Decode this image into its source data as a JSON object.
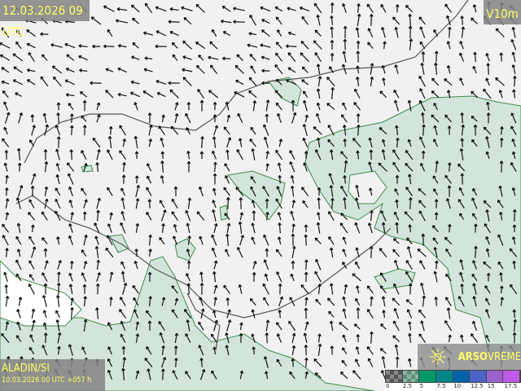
{
  "header": {
    "valid_time": "12.03.2026 09 UTC",
    "variable": "V10m"
  },
  "footer": {
    "model": "ALADIN/SI",
    "run_info": "10.03.2026 00 UTC +057 h"
  },
  "brand": {
    "name_bold": "ARSO",
    "name_light": "VREME",
    "icon": "arso-sun-logo-icon"
  },
  "legend": {
    "unit_levels": [
      "0",
      "2.5",
      "5",
      "7.5",
      "10",
      "12.5",
      "15",
      "17.5"
    ],
    "colors": [
      "#555555",
      "#5e8f7a",
      "#009966",
      "#00858a",
      "#0062a8",
      "#4a63c4",
      "#9a62cc",
      "#c05ae8"
    ]
  },
  "map": {
    "land_color": "#f1f1f1",
    "wind_shade_color": "#d3e5db",
    "shade_border_color": "#3d8c4f",
    "border_color": "#555555",
    "arrow_color": "#111111"
  }
}
